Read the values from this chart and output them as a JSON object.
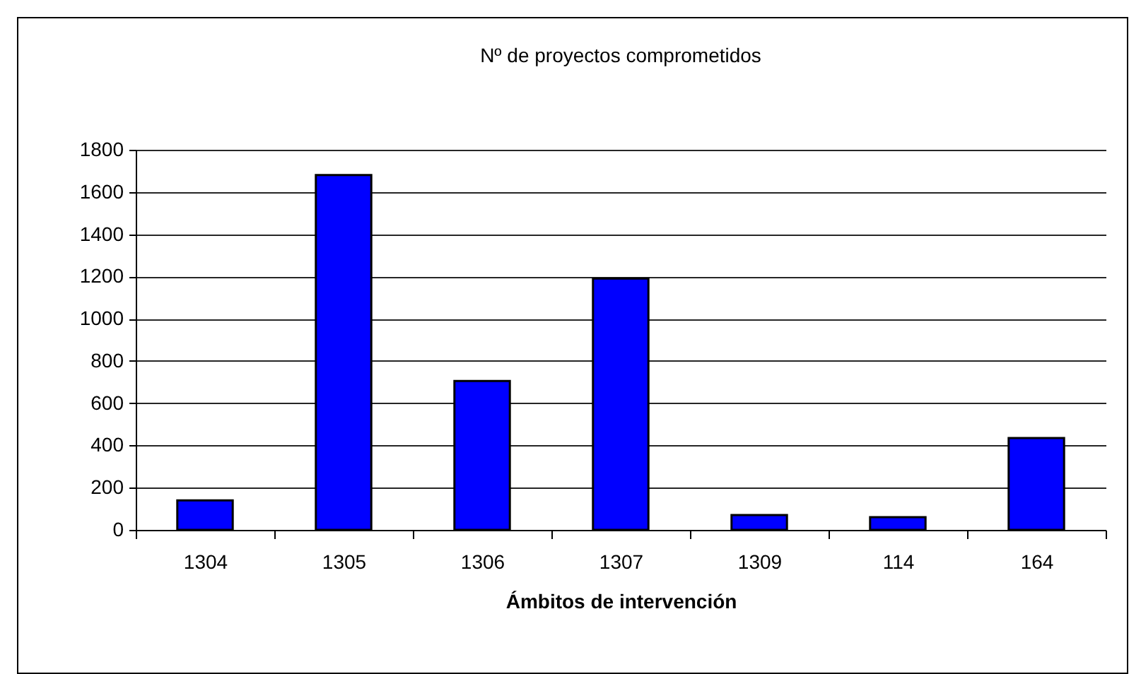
{
  "chart_data": {
    "type": "bar",
    "title": "Nº de proyectos comprometidos",
    "xlabel": "Ámbitos de intervención",
    "categories": [
      "1304",
      "1305",
      "1306",
      "1307",
      "1309",
      "114",
      "164"
    ],
    "values": [
      140,
      1680,
      705,
      1190,
      70,
      60,
      435
    ],
    "color": "#0000ff",
    "ylim": [
      0,
      1800
    ],
    "yticks": [
      0,
      200,
      400,
      600,
      800,
      1000,
      1200,
      1400,
      1600,
      1800
    ],
    "grid": true
  }
}
